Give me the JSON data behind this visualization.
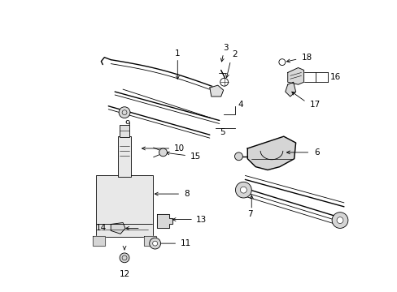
{
  "bg_color": "#ffffff",
  "line_color": "#000000",
  "fig_width": 4.89,
  "fig_height": 3.6,
  "dpi": 100,
  "label_fs": 7.5,
  "lw_main": 1.0,
  "lw_thin": 0.6
}
